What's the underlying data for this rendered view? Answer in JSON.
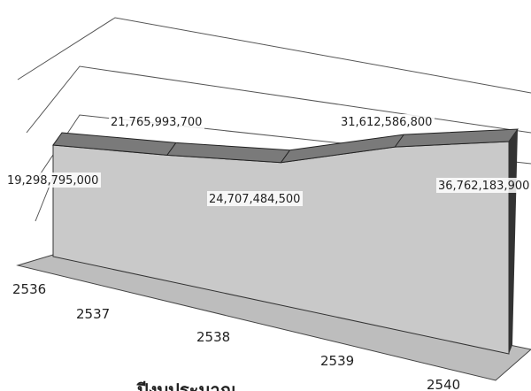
{
  "chart_data": {
    "type": "area3d",
    "x_label": "ปีงบประมาณ",
    "categories": [
      "2536",
      "2537",
      "2538",
      "2539",
      "2540"
    ],
    "values": [
      19298795000,
      21765993700,
      24707484500,
      31612586800,
      36762183900
    ],
    "value_labels": [
      "19,298,795,000",
      "21,765,993,700",
      "24,707,484,500",
      "31,612,586,800",
      "36,762,183,900"
    ],
    "color": "#c9c9c9",
    "top_color": "#7a7a7a"
  }
}
